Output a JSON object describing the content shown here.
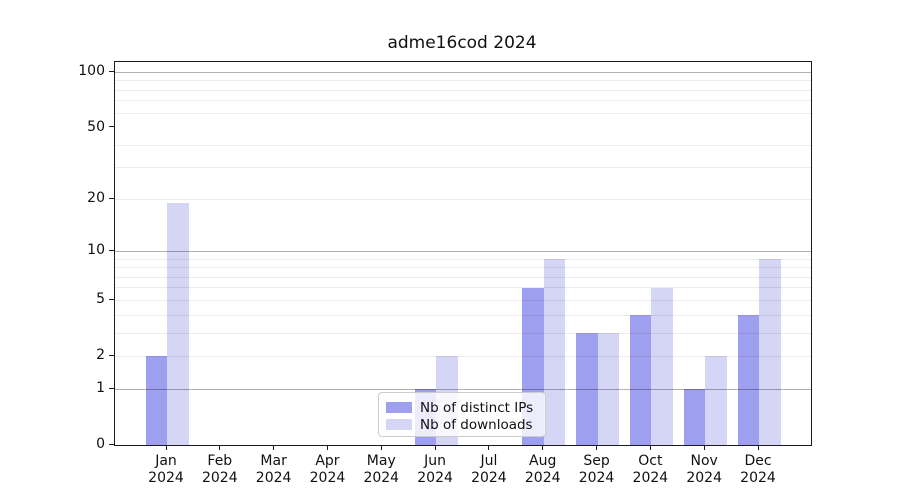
{
  "title": "adme16cod 2024",
  "chart_data": {
    "type": "bar",
    "title": "adme16cod 2024",
    "categories": [
      "Jan 2024",
      "Feb 2024",
      "Mar 2024",
      "Apr 2024",
      "May 2024",
      "Jun 2024",
      "Jul 2024",
      "Aug 2024",
      "Sep 2024",
      "Oct 2024",
      "Nov 2024",
      "Dec 2024"
    ],
    "x_tick_line1": [
      "Jan",
      "Feb",
      "Mar",
      "Apr",
      "May",
      "Jun",
      "Jul",
      "Aug",
      "Sep",
      "Oct",
      "Nov",
      "Dec"
    ],
    "x_tick_line2": [
      "2024",
      "2024",
      "2024",
      "2024",
      "2024",
      "2024",
      "2024",
      "2024",
      "2024",
      "2024",
      "2024",
      "2024"
    ],
    "series": [
      {
        "name": "Nb of distinct IPs",
        "color": "#9f9ff0",
        "values": [
          2,
          0,
          0,
          0,
          0,
          1,
          0,
          6,
          3,
          4,
          1,
          4
        ]
      },
      {
        "name": "Nb of downloads",
        "color": "#d5d5f6",
        "values": [
          19,
          0,
          0,
          0,
          0,
          2,
          0,
          9,
          3,
          6,
          2,
          9
        ]
      }
    ],
    "y_axis": {
      "scale": "log10(1+x)",
      "tick_labels": [
        "0",
        "1",
        "2",
        "5",
        "10",
        "20",
        "50",
        "100"
      ],
      "tick_values": [
        0,
        1,
        2,
        5,
        10,
        20,
        50,
        100
      ],
      "major_gridlines": [
        1,
        10,
        100
      ],
      "minor_gridlines": [
        2,
        3,
        4,
        5,
        6,
        7,
        8,
        9,
        20,
        30,
        40,
        60,
        70,
        80,
        90
      ],
      "min": 0,
      "max": 114
    },
    "grid": "on",
    "legend_position": "lower center",
    "xlabel": "",
    "ylabel": ""
  },
  "legend": {
    "items": [
      {
        "label": "Nb of distinct IPs"
      },
      {
        "label": "Nb of downloads"
      }
    ]
  }
}
